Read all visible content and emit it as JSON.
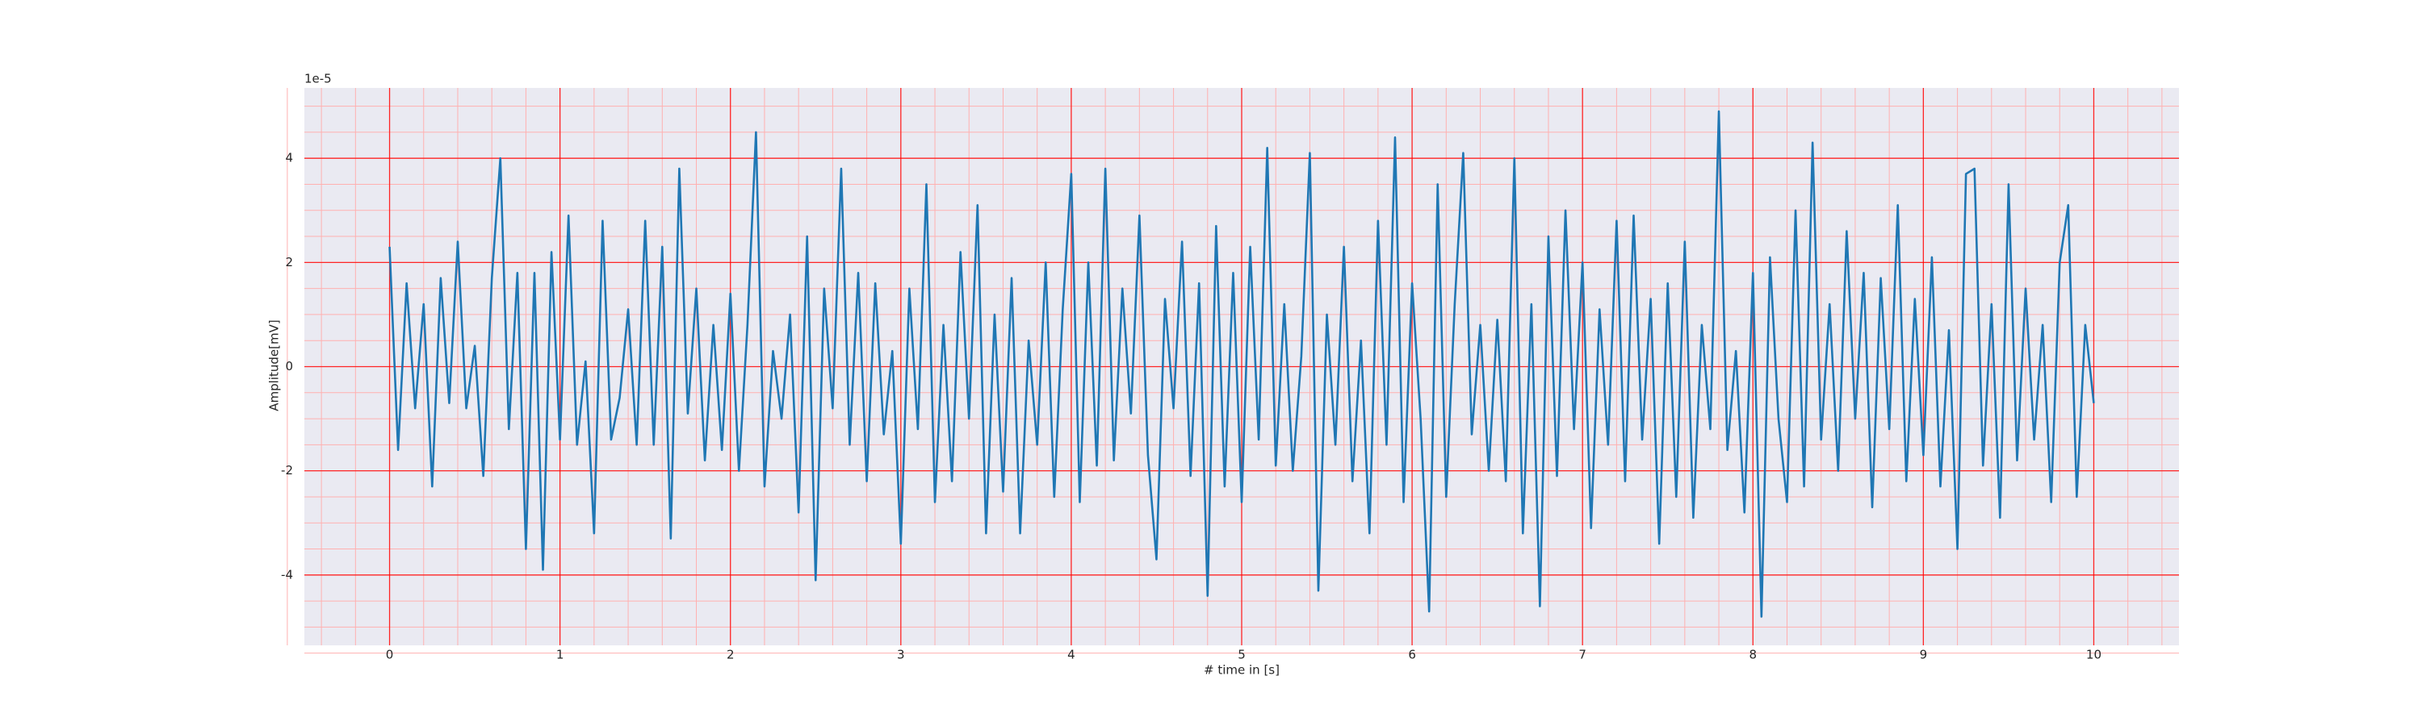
{
  "chart_data": {
    "type": "line",
    "xlabel": "# time in [s]",
    "ylabel": "Amplitude[mV]",
    "offset_text": "1e-5",
    "x": [
      0,
      0.05,
      0.1,
      0.15,
      0.2,
      0.25,
      0.3,
      0.35,
      0.4,
      0.45,
      0.5,
      0.55,
      0.6,
      0.65,
      0.7,
      0.75,
      0.8,
      0.85,
      0.9,
      0.95,
      1,
      1.05,
      1.1,
      1.15,
      1.2,
      1.25,
      1.3,
      1.35,
      1.4,
      1.45,
      1.5,
      1.55,
      1.6,
      1.65,
      1.7,
      1.75,
      1.8,
      1.85,
      1.9,
      1.95,
      2,
      2.05,
      2.1,
      2.15,
      2.2,
      2.25,
      2.3,
      2.35,
      2.4,
      2.45,
      2.5,
      2.55,
      2.6,
      2.65,
      2.7,
      2.75,
      2.8,
      2.85,
      2.9,
      2.95,
      3,
      3.05,
      3.1,
      3.15,
      3.2,
      3.25,
      3.3,
      3.35,
      3.4,
      3.45,
      3.5,
      3.55,
      3.6,
      3.65,
      3.7,
      3.75,
      3.8,
      3.85,
      3.9,
      3.95,
      4,
      4.05,
      4.1,
      4.15,
      4.2,
      4.25,
      4.3,
      4.35,
      4.4,
      4.45,
      4.5,
      4.55,
      4.6,
      4.65,
      4.7,
      4.75,
      4.8,
      4.85,
      4.9,
      4.95,
      5,
      5.05,
      5.1,
      5.15,
      5.2,
      5.25,
      5.3,
      5.35,
      5.4,
      5.45,
      5.5,
      5.55,
      5.6,
      5.65,
      5.7,
      5.75,
      5.8,
      5.85,
      5.9,
      5.95,
      6,
      6.05,
      6.1,
      6.15,
      6.2,
      6.25,
      6.3,
      6.35,
      6.4,
      6.45,
      6.5,
      6.55,
      6.6,
      6.65,
      6.7,
      6.75,
      6.8,
      6.85,
      6.9,
      6.95,
      7,
      7.05,
      7.1,
      7.15,
      7.2,
      7.25,
      7.3,
      7.35,
      7.4,
      7.45,
      7.5,
      7.55,
      7.6,
      7.65,
      7.7,
      7.75,
      7.8,
      7.85,
      7.9,
      7.95,
      8,
      8.05,
      8.1,
      8.15,
      8.2,
      8.25,
      8.3,
      8.35,
      8.4,
      8.45,
      8.5,
      8.55,
      8.6,
      8.65,
      8.7,
      8.75,
      8.8,
      8.85,
      8.9,
      8.95,
      9,
      9.05,
      9.1,
      9.15,
      9.2,
      9.25,
      9.3,
      9.35,
      9.4,
      9.45,
      9.5,
      9.55,
      9.6,
      9.65,
      9.7,
      9.75,
      9.8,
      9.85,
      9.9,
      9.95,
      10
    ],
    "series": [
      {
        "color": "#1f77b4",
        "values": [
          2.3,
          -1.6,
          1.6,
          -0.8,
          1.2,
          -2.3,
          1.7,
          -0.7,
          2.4,
          -0.8,
          0.4,
          -2.1,
          1.7,
          4.0,
          -1.2,
          1.8,
          -3.5,
          1.8,
          -3.9,
          2.2,
          -1.4,
          2.9,
          -1.5,
          0.1,
          -3.2,
          2.8,
          -1.4,
          -0.6,
          1.1,
          -1.5,
          2.8,
          -1.5,
          2.3,
          -3.3,
          3.8,
          -0.9,
          1.5,
          -1.8,
          0.8,
          -1.6,
          1.4,
          -2.0,
          0.8,
          4.5,
          -2.3,
          0.3,
          -1.0,
          1.0,
          -2.8,
          2.5,
          -4.1,
          1.5,
          -0.8,
          3.8,
          -1.5,
          1.8,
          -2.2,
          1.6,
          -1.3,
          0.3,
          -3.4,
          1.5,
          -1.2,
          3.5,
          -2.6,
          0.8,
          -2.2,
          2.2,
          -1.0,
          3.1,
          -3.2,
          1.0,
          -2.4,
          1.7,
          -3.2,
          0.5,
          -1.5,
          2.0,
          -2.5,
          1.1,
          3.7,
          -2.6,
          2.0,
          -1.9,
          3.8,
          -1.8,
          1.5,
          -0.9,
          2.9,
          -1.7,
          -3.7,
          1.3,
          -0.8,
          2.4,
          -2.1,
          1.6,
          -4.4,
          2.7,
          -2.3,
          1.8,
          -2.6,
          2.3,
          -1.4,
          4.2,
          -1.9,
          1.2,
          -2.0,
          0.2,
          4.1,
          -4.3,
          1.0,
          -1.5,
          2.3,
          -2.2,
          0.5,
          -3.2,
          2.8,
          -1.5,
          4.4,
          -2.6,
          1.6,
          -1.0,
          -4.7,
          3.5,
          -2.5,
          1.2,
          4.1,
          -1.3,
          0.8,
          -2.0,
          0.9,
          -2.2,
          4.0,
          -3.2,
          1.2,
          -4.6,
          2.5,
          -2.1,
          3.0,
          -1.2,
          2.0,
          -3.1,
          1.1,
          -1.5,
          2.8,
          -2.2,
          2.9,
          -1.4,
          1.3,
          -3.4,
          1.6,
          -2.5,
          2.4,
          -2.9,
          0.8,
          -1.2,
          4.9,
          -1.6,
          0.3,
          -2.8,
          1.8,
          -4.8,
          2.1,
          -1.0,
          -2.6,
          3.0,
          -2.3,
          4.3,
          -1.4,
          1.2,
          -2.0,
          2.6,
          -1.0,
          1.8,
          -2.7,
          1.7,
          -1.2,
          3.1,
          -2.2,
          1.3,
          -1.7,
          2.1,
          -2.3,
          0.7,
          -3.5,
          3.7,
          3.8,
          -1.9,
          1.2,
          -2.9,
          3.5,
          -1.8,
          1.5,
          -1.4,
          0.8,
          -2.6,
          2.0,
          3.1,
          -2.5,
          0.8,
          -0.7
        ]
      }
    ],
    "xlim": [
      -0.5,
      10.5
    ],
    "xticks": [
      0,
      1,
      2,
      3,
      4,
      5,
      6,
      7,
      8,
      9,
      10
    ],
    "ylim": [
      -5.35,
      5.35
    ],
    "yticks": [
      -4,
      -2,
      0,
      2,
      4
    ],
    "grid": true,
    "grid_color": "#ff0000",
    "minor_grid": true,
    "minor_grid_color": "#ffb0b0",
    "background": "#eaeaf2"
  }
}
